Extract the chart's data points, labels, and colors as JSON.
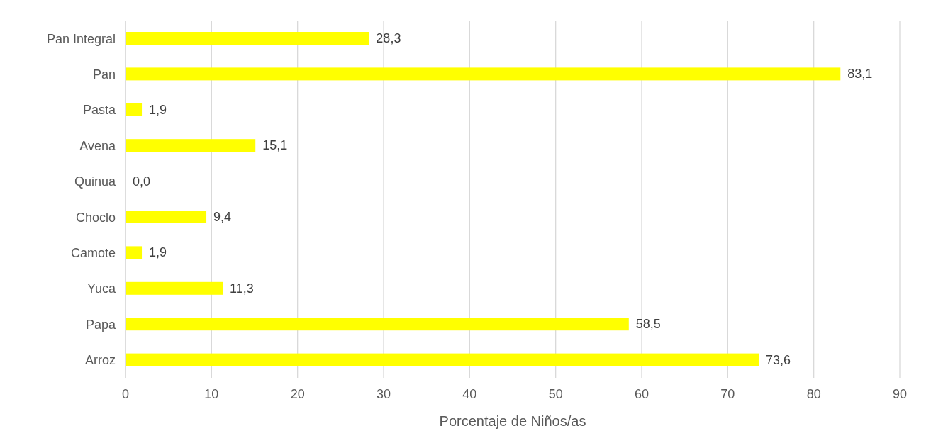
{
  "chart_data": {
    "type": "bar",
    "orientation": "horizontal",
    "xlabel": "Porcentaje de Niños/as",
    "categories": [
      "Pan Integral",
      "Pan",
      "Pasta",
      "Avena",
      "Quinua",
      "Choclo",
      "Camote",
      "Yuca",
      "Papa",
      "Arroz"
    ],
    "values": [
      28.3,
      83.1,
      1.9,
      15.1,
      0.0,
      9.4,
      1.9,
      11.3,
      58.5,
      73.6
    ],
    "value_labels": [
      "28,3",
      "83,1",
      "1,9",
      "15,1",
      "0,0",
      "9,4",
      "1,9",
      "11,3",
      "58,5",
      "73,6"
    ],
    "color": "#ffff00",
    "xlim": [
      0,
      90
    ],
    "xticks": [
      0,
      10,
      20,
      30,
      40,
      50,
      60,
      70,
      80,
      90
    ],
    "grid": "x",
    "legend": false
  }
}
